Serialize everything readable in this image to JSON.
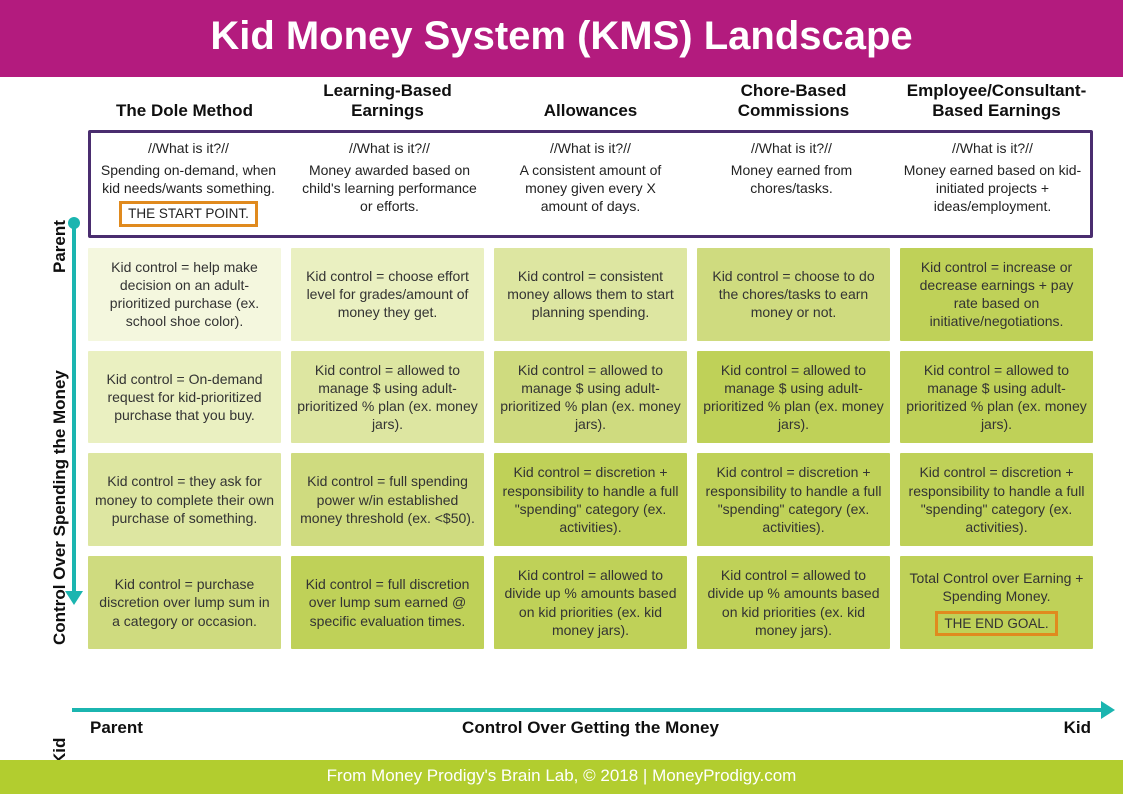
{
  "colors": {
    "header_bg": "#b31b7e",
    "header_text": "#ffffff",
    "footer_bg": "#b2cd2f",
    "footer_text": "#ffffff",
    "axis": "#1bb5b0",
    "what_border": "#4a2d6f",
    "badge_border": "#e08a1e",
    "text": "#222222",
    "shades": [
      "#f4f7de",
      "#eaf0c1",
      "#dde6a1",
      "#cfdb7f",
      "#bfd158"
    ]
  },
  "header": {
    "title": "Kid Money System (KMS) Landscape",
    "fontsize": 40
  },
  "footer": {
    "text": "From Money Prodigy's Brain Lab, © 2018 | MoneyProdigy.com"
  },
  "columns": [
    "The Dole Method",
    "Learning-Based Earnings",
    "Allowances",
    "Chore-Based Commissions",
    "Employee/Consultant-Based Earnings"
  ],
  "what_label": "//What is it?//",
  "what": [
    "Spending on-demand, when kid needs/wants something.",
    "Money awarded based on child's learning performance or efforts.",
    "A consistent amount of money given every X amount of days.",
    "Money earned from chores/tasks.",
    "Money earned based on kid-initiated projects + ideas/employment."
  ],
  "start_badge": "THE START POINT.",
  "end_badge": "THE END GOAL.",
  "rows": [
    [
      "Kid control = help make decision on an adult-prioritized purchase (ex. school shoe color).",
      "Kid control = choose effort level for grades/amount of money they get.",
      "Kid control = consistent money allows them to start planning spending.",
      "Kid control = choose to do the chores/tasks to earn money or not.",
      "Kid control = increase or decrease earnings + pay rate based on initiative/negotiations."
    ],
    [
      "Kid control = On-demand request for kid-prioritized purchase that you buy.",
      "Kid control = allowed to manage $ using adult-prioritized % plan (ex. money jars).",
      "Kid control = allowed to manage $ using adult-prioritized % plan (ex. money jars).",
      "Kid control = allowed to manage $ using adult-prioritized % plan (ex. money jars).",
      "Kid control = allowed to manage $ using adult-prioritized % plan (ex. money jars)."
    ],
    [
      "Kid control = they ask for money to complete their own purchase of something.",
      "Kid control = full spending power w/in established money threshold (ex. <$50).",
      "Kid control = discretion + responsibility to handle a full \"spending\" category (ex. activities).",
      "Kid control = discretion + responsibility to handle a full \"spending\" category (ex. activities).",
      "Kid control = discretion + responsibility to handle a full \"spending\" category (ex. activities)."
    ],
    [
      "Kid control = purchase discretion over lump sum in a category or occasion.",
      "Kid control = full discretion over lump sum earned @ specific evaluation times.",
      "Kid control = allowed to divide up % amounts based on kid priorities (ex. kid money jars).",
      "Kid control = allowed to divide up % amounts based on kid priorities (ex. kid money jars).",
      "Total Control over Earning + Spending Money."
    ]
  ],
  "axes": {
    "y": {
      "top": "Parent",
      "mid": "Control Over Spending the Money",
      "bottom": "Kid"
    },
    "x": {
      "left": "Parent",
      "mid": "Control Over Getting the Money",
      "right": "Kid"
    }
  }
}
